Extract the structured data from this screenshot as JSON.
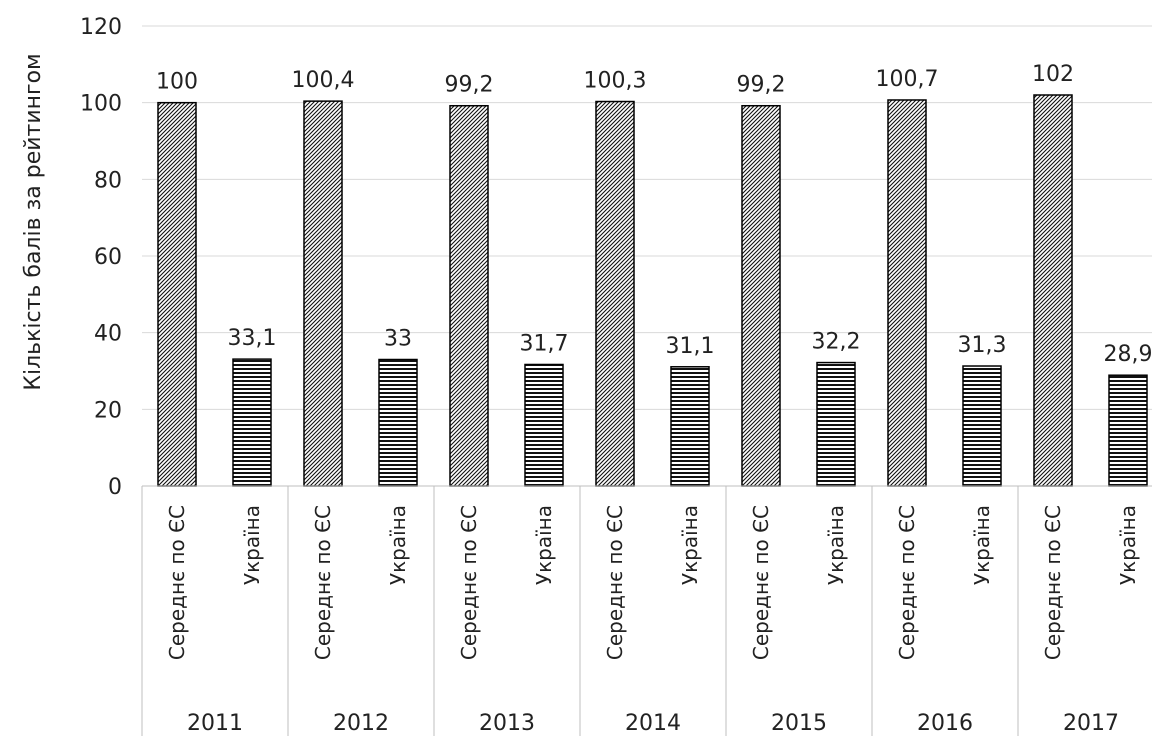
{
  "chart_data": {
    "type": "bar",
    "title": "",
    "xlabel": "",
    "ylabel": "Кількість балів за рейтингом",
    "ylim": [
      0,
      120
    ],
    "yticks": [
      0,
      20,
      40,
      60,
      80,
      100,
      120
    ],
    "grid": true,
    "legend": "none",
    "groups": [
      {
        "year": "2011",
        "bars": [
          {
            "category": "Середнє по ЄС",
            "value": 100,
            "label": "100",
            "pattern": "diagonal"
          },
          {
            "category": "Україна",
            "value": 33.1,
            "label": "33,1",
            "pattern": "horizontal"
          }
        ]
      },
      {
        "year": "2012",
        "bars": [
          {
            "category": "Середнє по ЄС",
            "value": 100.4,
            "label": "100,4",
            "pattern": "diagonal"
          },
          {
            "category": "Україна",
            "value": 33,
            "label": "33",
            "pattern": "horizontal"
          }
        ]
      },
      {
        "year": "2013",
        "bars": [
          {
            "category": "Середнє по ЄС",
            "value": 99.2,
            "label": "99,2",
            "pattern": "diagonal"
          },
          {
            "category": "Україна",
            "value": 31.7,
            "label": "31,7",
            "pattern": "horizontal"
          }
        ]
      },
      {
        "year": "2014",
        "bars": [
          {
            "category": "Середнє по ЄС",
            "value": 100.3,
            "label": "100,3",
            "pattern": "diagonal"
          },
          {
            "category": "Україна",
            "value": 31.1,
            "label": "31,1",
            "pattern": "horizontal"
          }
        ]
      },
      {
        "year": "2015",
        "bars": [
          {
            "category": "Середнє по ЄС",
            "value": 99.2,
            "label": "99,2",
            "pattern": "diagonal"
          },
          {
            "category": "Україна",
            "value": 32.2,
            "label": "32,2",
            "pattern": "horizontal"
          }
        ]
      },
      {
        "year": "2016",
        "bars": [
          {
            "category": "Середнє по ЄС",
            "value": 100.7,
            "label": "100,7",
            "pattern": "diagonal"
          },
          {
            "category": "Україна",
            "value": 31.3,
            "label": "31,3",
            "pattern": "horizontal"
          }
        ]
      },
      {
        "year": "2017",
        "bars": [
          {
            "category": "Середнє по ЄС",
            "value": 102,
            "label": "102",
            "pattern": "diagonal"
          },
          {
            "category": "Україна",
            "value": 28.9,
            "label": "28,9",
            "pattern": "horizontal"
          }
        ]
      }
    ]
  }
}
